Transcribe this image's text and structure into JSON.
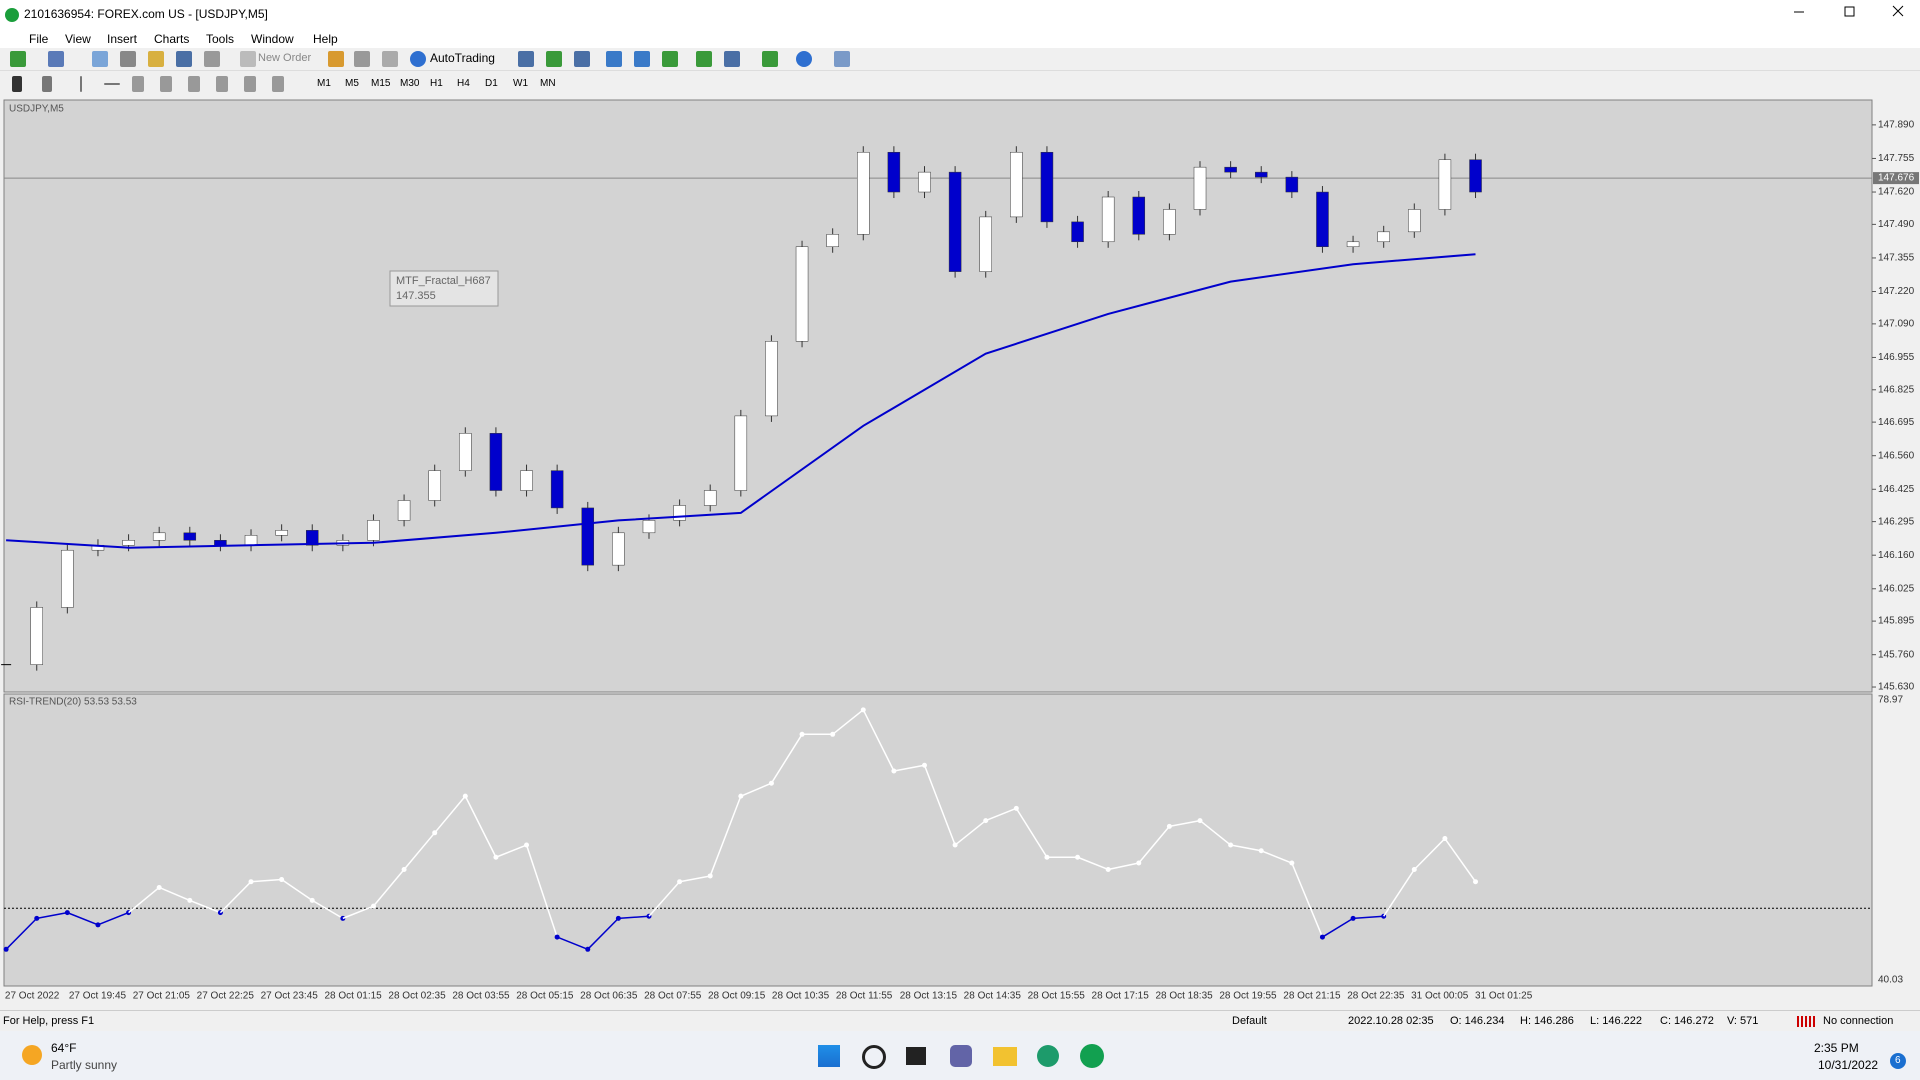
{
  "window": {
    "title": "2101636954: FOREX.com US - [USDJPY,M5]"
  },
  "menu": [
    "File",
    "View",
    "Insert",
    "Charts",
    "Tools",
    "Window",
    "Help"
  ],
  "toolbar": {
    "new_order": "New Order",
    "auto_trading": "AutoTrading",
    "timeframes": [
      "M1",
      "M5",
      "M15",
      "M30",
      "H1",
      "H4",
      "D1",
      "W1",
      "MN"
    ]
  },
  "chart": {
    "symbol_label": "USDJPY,M5",
    "ylim": [
      145.61,
      147.99
    ],
    "yticks": [
      {
        "value": 147.89,
        "label": "147.890"
      },
      147.755,
      {
        "value": 147.62,
        "label": "147.620"
      },
      {
        "value": 147.49,
        "label": "147.490"
      },
      147.355,
      {
        "value": 147.22,
        "label": "147.220"
      },
      {
        "value": 147.09,
        "label": "147.090"
      },
      146.955,
      146.825,
      146.695,
      {
        "value": 146.56,
        "label": "146.560"
      },
      146.425,
      146.295,
      {
        "value": 146.16,
        "label": "146.160"
      },
      146.025,
      145.895,
      {
        "value": 145.76,
        "label": "145.760"
      },
      {
        "value": 145.63,
        "label": "145.630"
      }
    ],
    "current_price": 147.676,
    "tooltip": {
      "name": "MTF_Fractal_H687",
      "value": 147.355
    },
    "close": [
      145.72,
      145.95,
      146.18,
      146.2,
      146.22,
      146.25,
      146.22,
      146.2,
      146.24,
      146.26,
      146.2,
      146.22,
      146.3,
      146.38,
      146.5,
      146.65,
      146.42,
      146.5,
      146.35,
      146.12,
      146.25,
      146.3,
      146.36,
      146.42,
      146.72,
      147.02,
      147.4,
      147.45,
      147.78,
      147.62,
      147.7,
      147.3,
      147.52,
      147.78,
      147.5,
      147.42,
      147.6,
      147.45,
      147.55,
      147.72,
      147.7,
      147.68,
      147.62,
      147.4,
      147.42,
      147.46,
      147.55,
      147.75,
      147.62
    ],
    "ma": [
      146.22,
      146.19,
      146.2,
      146.21,
      146.25,
      146.3,
      146.33,
      146.68,
      146.97,
      147.13,
      147.26,
      147.33,
      147.37
    ],
    "ma_color": "#0000cc",
    "up_color": "#ffffff",
    "down_color": "#0000cc",
    "xlabels": [
      "27 Oct 2022",
      "27 Oct 19:45",
      "27 Oct 21:05",
      "27 Oct 22:25",
      "27 Oct 23:45",
      "28 Oct 01:15",
      "28 Oct 02:35",
      "28 Oct 03:55",
      "28 Oct 05:15",
      "28 Oct 06:35",
      "28 Oct 07:55",
      "28 Oct 09:15",
      "28 Oct 10:35",
      "28 Oct 11:55",
      "28 Oct 13:15",
      "28 Oct 14:35",
      "28 Oct 15:55",
      "28 Oct 17:15",
      "28 Oct 18:35",
      "28 Oct 19:55",
      "28 Oct 21:15",
      "28 Oct 22:35",
      "31 Oct 00:05",
      "31 Oct 01:25"
    ]
  },
  "indicator": {
    "label": "RSI-TREND(20) 53.53 53.53",
    "ylim": [
      40.03,
      78.97
    ],
    "yticks": [
      78.97,
      40.03
    ],
    "level": 50,
    "values": [
      44.3,
      48.6,
      49.4,
      47.7,
      49.4,
      52.9,
      51.1,
      49.4,
      53.7,
      54.0,
      51.1,
      48.6,
      50.3,
      55.4,
      60.5,
      65.6,
      57.1,
      58.8,
      46.0,
      44.3,
      48.6,
      48.9,
      53.7,
      54.5,
      65.6,
      67.4,
      74.2,
      74.2,
      77.6,
      69.1,
      69.9,
      58.8,
      62.2,
      63.9,
      57.1,
      57.1,
      55.4,
      56.3,
      61.4,
      62.2,
      58.8,
      58.0,
      56.3,
      46.0,
      48.6,
      48.9,
      55.4,
      59.7,
      53.7
    ]
  },
  "status": {
    "help": "For Help, press F1",
    "profile": "Default",
    "time": "2022.10.28 02:35",
    "open": "O: 146.234",
    "high": "H: 146.286",
    "low": "L: 146.222",
    "close": "C: 146.272",
    "volume": "V: 571",
    "connection": "No connection"
  },
  "taskbar": {
    "temperature": "64°F",
    "weather": "Partly sunny",
    "time": "2:35 PM",
    "date": "10/31/2022",
    "notifications": "6"
  }
}
